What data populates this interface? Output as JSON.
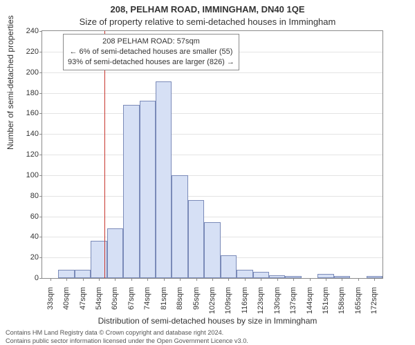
{
  "title": "208, PELHAM ROAD, IMMINGHAM, DN40 1QE",
  "subtitle": "Size of property relative to semi-detached houses in Immingham",
  "ylabel": "Number of semi-detached properties",
  "xlabel": "Distribution of semi-detached houses by size in Immingham",
  "footer_line1": "Contains HM Land Registry data © Crown copyright and database right 2024.",
  "footer_line2": "Contains public sector information licensed under the Open Government Licence v3.0.",
  "annotation": {
    "line1": "208 PELHAM ROAD: 57sqm",
    "line2": "← 6% of semi-detached houses are smaller (55)",
    "line3": "93% of semi-detached houses are larger (826) →"
  },
  "chart": {
    "type": "histogram",
    "ylim": [
      0,
      240
    ],
    "ytick_step": 20,
    "x_bin_start": 30,
    "x_bin_width": 7,
    "x_bin_count": 21,
    "x_labels": [
      "33sqm",
      "40sqm",
      "47sqm",
      "54sqm",
      "60sqm",
      "67sqm",
      "74sqm",
      "81sqm",
      "88sqm",
      "95sqm",
      "102sqm",
      "109sqm",
      "116sqm",
      "123sqm",
      "130sqm",
      "137sqm",
      "144sqm",
      "151sqm",
      "158sqm",
      "165sqm",
      "172sqm"
    ],
    "values": [
      0,
      8,
      8,
      36,
      48,
      168,
      172,
      191,
      100,
      76,
      54,
      22,
      8,
      6,
      3,
      2,
      0,
      4,
      2,
      0,
      2
    ],
    "bar_fill": "#d6e0f5",
    "bar_border": "#7a8ab8",
    "background_color": "#ffffff",
    "grid_color": "#e3e3e3",
    "axis_color": "#8a8a8a",
    "marker_value_sqm": 57,
    "marker_color": "#c8362e",
    "label_fontsize": 11,
    "title_fontsize": 13
  }
}
